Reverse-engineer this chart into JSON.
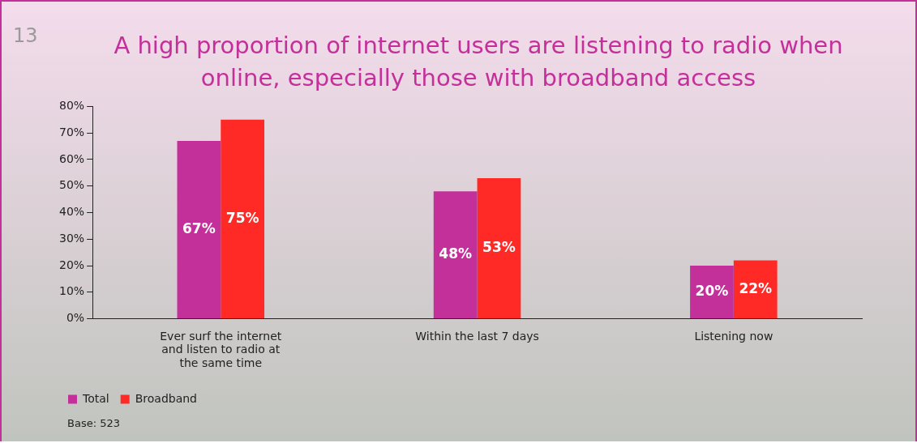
{
  "chart_data": {
    "type": "bar",
    "title": "A high proportion of internet users are listening to radio when online, especially those with broadband access",
    "categories": [
      "Ever surf the internet and listen to radio at the same time",
      "Within the last 7 days",
      "Listening now"
    ],
    "series": [
      {
        "name": "Total",
        "color": "#c4309a",
        "values": [
          67,
          48,
          20
        ],
        "value_labels": [
          "67%",
          "48%",
          "20%"
        ]
      },
      {
        "name": "Broadband",
        "color": "#ff2a26",
        "values": [
          75,
          53,
          22
        ],
        "value_labels": [
          "75%",
          "53%",
          "22%"
        ]
      }
    ],
    "ylim": [
      0,
      80
    ],
    "yticks": [
      {
        "value": 0,
        "label": "0%"
      },
      {
        "value": 10,
        "label": "10%"
      },
      {
        "value": 20,
        "label": "20%"
      },
      {
        "value": 30,
        "label": "30%"
      },
      {
        "value": 40,
        "label": "40%"
      },
      {
        "value": 50,
        "label": "50%"
      },
      {
        "value": 60,
        "label": "60%"
      },
      {
        "value": 70,
        "label": "70%"
      },
      {
        "value": 80,
        "label": "80%"
      }
    ],
    "grid": false,
    "legend": "bottom left",
    "annotations": [
      "13",
      "Base: 523"
    ]
  }
}
